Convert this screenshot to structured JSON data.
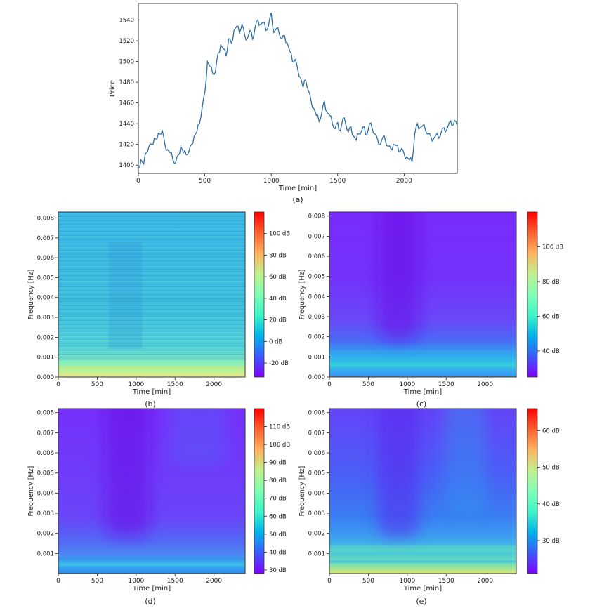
{
  "chart_data": [
    {
      "id": "a",
      "type": "line",
      "caption": "(a)",
      "xlabel": "Time [min]",
      "ylabel": "Price",
      "xlim": [
        0,
        2400
      ],
      "ylim": [
        1392,
        1556
      ],
      "xticks": [
        0,
        500,
        1000,
        1500,
        2000
      ],
      "yticks": [
        1400,
        1420,
        1440,
        1460,
        1480,
        1500,
        1520,
        1540
      ],
      "line_color": "#2f6fa8",
      "series": [
        {
          "x": [
            0,
            20,
            40,
            60,
            80,
            100,
            120,
            140,
            160,
            180,
            200,
            220,
            240,
            260,
            280,
            300,
            320,
            340,
            360,
            380,
            400,
            420,
            440,
            460,
            480,
            500,
            520,
            540,
            560,
            580,
            600,
            620,
            640,
            660,
            680,
            700,
            720,
            740,
            760,
            780,
            800,
            820,
            840,
            860,
            880,
            900,
            920,
            940,
            960,
            980,
            1000,
            1020,
            1040,
            1060,
            1080,
            1100,
            1120,
            1140,
            1160,
            1180,
            1200,
            1220,
            1240,
            1260,
            1280,
            1300,
            1320,
            1340,
            1360,
            1380,
            1400,
            1420,
            1440,
            1460,
            1480,
            1500,
            1520,
            1540,
            1560,
            1580,
            1600,
            1620,
            1640,
            1660,
            1680,
            1700,
            1720,
            1740,
            1760,
            1780,
            1800,
            1820,
            1840,
            1860,
            1880,
            1900,
            1920,
            1940,
            1960,
            1980,
            2000,
            2020,
            2040,
            2060,
            2080,
            2100,
            2120,
            2140,
            2160,
            2180,
            2200,
            2220,
            2240,
            2260,
            2280,
            2300,
            2320,
            2340,
            2360,
            2380,
            2400
          ],
          "y": [
            1397,
            1405,
            1401,
            1412,
            1418,
            1420,
            1426,
            1425,
            1430,
            1433,
            1420,
            1415,
            1412,
            1405,
            1402,
            1410,
            1418,
            1412,
            1410,
            1413,
            1420,
            1428,
            1432,
            1440,
            1455,
            1470,
            1500,
            1495,
            1488,
            1490,
            1508,
            1516,
            1512,
            1505,
            1522,
            1518,
            1530,
            1534,
            1528,
            1536,
            1526,
            1522,
            1530,
            1521,
            1534,
            1540,
            1536,
            1538,
            1530,
            1535,
            1547,
            1528,
            1532,
            1527,
            1522,
            1525,
            1518,
            1510,
            1500,
            1502,
            1492,
            1485,
            1475,
            1482,
            1472,
            1462,
            1455,
            1448,
            1442,
            1450,
            1462,
            1451,
            1448,
            1440,
            1435,
            1441,
            1433,
            1445,
            1440,
            1432,
            1437,
            1428,
            1424,
            1430,
            1433,
            1437,
            1429,
            1440,
            1435,
            1430,
            1425,
            1420,
            1427,
            1423,
            1418,
            1416,
            1420,
            1419,
            1413,
            1416,
            1411,
            1408,
            1405,
            1403,
            1430,
            1440,
            1436,
            1438,
            1434,
            1430,
            1428,
            1425,
            1429,
            1426,
            1432,
            1436,
            1434,
            1441,
            1438,
            1443,
            1438
          ]
        }
      ]
    },
    {
      "id": "b",
      "type": "heatmap",
      "caption": "(b)",
      "xlabel": "Time [min]",
      "ylabel": "Frequency [Hz]",
      "xlim": [
        0,
        2400
      ],
      "ylim": [
        0,
        0.0083
      ],
      "xticks": [
        0,
        500,
        1000,
        1500,
        2000
      ],
      "yticks": [
        0.0,
        0.001,
        0.002,
        0.003,
        0.004,
        0.005,
        0.006,
        0.007,
        0.008
      ],
      "ytick_labels": [
        "0.000",
        "0.001",
        "0.002",
        "0.003",
        "0.004",
        "0.005",
        "0.006",
        "0.007",
        "0.008"
      ],
      "colorbar_range": [
        -33,
        120
      ],
      "colorbar_ticks": [
        -20,
        0,
        20,
        40,
        60,
        80,
        100
      ],
      "colorbar_labels": [
        "-20 dB",
        "0 dB",
        "20 dB",
        "40 dB",
        "60 dB",
        "80 dB",
        "100 dB"
      ],
      "colormap": "rainbow",
      "description_levels": {
        "background_db": 25,
        "low_freq_db": 55
      }
    },
    {
      "id": "c",
      "type": "heatmap",
      "caption": "(c)",
      "xlabel": "Time [min]",
      "ylabel": "Frequency [Hz]",
      "xlim": [
        0,
        2400
      ],
      "ylim": [
        0,
        0.0082
      ],
      "xticks": [
        0,
        500,
        1000,
        1500,
        2000
      ],
      "yticks": [
        0.0,
        0.001,
        0.002,
        0.003,
        0.004,
        0.005,
        0.006,
        0.007,
        0.008
      ],
      "ytick_labels": [
        "0.000",
        "0.001",
        "0.002",
        "0.003",
        "0.004",
        "0.005",
        "0.006",
        "0.007",
        "0.008"
      ],
      "colorbar_range": [
        25,
        120
      ],
      "colorbar_ticks": [
        40,
        60,
        80,
        100
      ],
      "colorbar_labels": [
        "40 dB",
        "60 dB",
        "80 dB",
        "100 dB"
      ],
      "colormap": "rainbow"
    },
    {
      "id": "d",
      "type": "heatmap",
      "caption": "(d)",
      "xlabel": "Time [min]",
      "ylabel": "Frequency [Hz]",
      "xlim": [
        0,
        2400
      ],
      "ylim": [
        0,
        0.0082
      ],
      "xticks": [
        0,
        500,
        1000,
        1500,
        2000
      ],
      "yticks": [
        0.001,
        0.002,
        0.003,
        0.004,
        0.005,
        0.006,
        0.007,
        0.008
      ],
      "ytick_labels": [
        "0.001",
        "0.002",
        "0.003",
        "0.004",
        "0.005",
        "0.006",
        "0.007",
        "0.008"
      ],
      "colorbar_range": [
        28,
        120
      ],
      "colorbar_ticks": [
        30,
        40,
        50,
        60,
        70,
        80,
        90,
        100,
        110
      ],
      "colorbar_labels": [
        "30 dB",
        "40 dB",
        "50 dB",
        "60 dB",
        "70 dB",
        "80 dB",
        "90 dB",
        "100 dB",
        "110 dB"
      ],
      "colormap": "rainbow"
    },
    {
      "id": "e",
      "type": "heatmap",
      "caption": "(e)",
      "xlabel": "Time [min]",
      "ylabel": "Frequency [Hz]",
      "xlim": [
        0,
        2400
      ],
      "ylim": [
        0,
        0.0082
      ],
      "xticks": [
        0,
        500,
        1000,
        1500,
        2000
      ],
      "yticks": [
        0.001,
        0.002,
        0.003,
        0.004,
        0.005,
        0.006,
        0.007,
        0.008
      ],
      "ytick_labels": [
        "0.001",
        "0.002",
        "0.003",
        "0.004",
        "0.005",
        "0.006",
        "0.007",
        "0.008"
      ],
      "colorbar_range": [
        21,
        66
      ],
      "colorbar_ticks": [
        30,
        40,
        50,
        60
      ],
      "colorbar_labels": [
        "30 dB",
        "40 dB",
        "50 dB",
        "60 dB"
      ],
      "colormap": "rainbow"
    }
  ]
}
